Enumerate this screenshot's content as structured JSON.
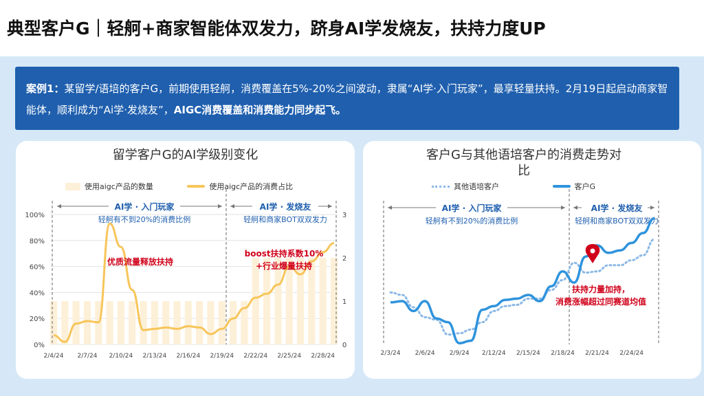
{
  "page_title": "典型客户G｜轻舸+商家智能体双发力，跻身AI学发烧友，扶持力度UP",
  "case": {
    "label": "案例1：",
    "text1": "某留学/语培的客户G，前期使用轻舸，消费覆盖在5%-20%之间波动，隶属“AI学·入门玩家”，最享轻量扶持。2月19日起启动商家智能体，顺利成为“Ai学·发烧友”，",
    "emphasis": "AIGC消费覆盖和消费能力同步起飞。"
  },
  "left_chart": {
    "title": "留学客户G的AI学级别变化",
    "legend": [
      "使用aigc产品的数量",
      "使用aigc产品的消费占比"
    ],
    "phase1_title": "AI学 · 入门玩家",
    "phase1_sub": "轻舸有不到20%的消费比例",
    "phase2_title": "AI学 · 发烧友",
    "phase2_sub": "轻舸和商家BOT双双发力",
    "annotation1": "优质流量释放扶持",
    "annotation2_line1": "boost扶持系数10%",
    "annotation2_line2": "+行业爆量扶持",
    "y_left_ticks": [
      "0%",
      "20%",
      "40%",
      "60%",
      "80%",
      "100%"
    ],
    "y_right_ticks": [
      "0",
      "1",
      "2",
      "3"
    ],
    "x_ticks": [
      "2/4/24",
      "2/7/24",
      "2/10/24",
      "2/13/24",
      "2/16/24",
      "2/19/24",
      "2/22/24",
      "2/25/24",
      "2/28/24"
    ]
  },
  "right_chart": {
    "title_line1": "客户G与其他语培客户的消费走势对",
    "title_line2": "比",
    "legend": [
      "其他语培客户",
      "客户G"
    ],
    "phase1_title": "AI学 · 入门玩家",
    "phase1_sub": "轻舸有不到20%的消费比例",
    "phase2_title": "AI学 · 发烧友",
    "phase2_sub": "轻舸和商家BOT双双发力",
    "annotation_line1": "扶持力量加持，",
    "annotation_line2": "消费涨幅超过同赛道均值",
    "x_ticks": [
      "2/3/24",
      "2/6/24",
      "2/9/24",
      "2/12/24",
      "2/15/24",
      "2/18/24",
      "2/21/24",
      "2/24/24"
    ]
  },
  "chart_data": [
    {
      "type": "bar",
      "title": "留学客户G的AI学级别变化",
      "x": [
        "2/4/24",
        "2/5/24",
        "2/6/24",
        "2/7/24",
        "2/8/24",
        "2/9/24",
        "2/10/24",
        "2/11/24",
        "2/12/24",
        "2/13/24",
        "2/14/24",
        "2/15/24",
        "2/16/24",
        "2/17/24",
        "2/18/24",
        "2/19/24",
        "2/20/24",
        "2/21/24",
        "2/22/24",
        "2/23/24",
        "2/24/24",
        "2/25/24",
        "2/26/24",
        "2/27/24",
        "2/28/24",
        "2/29/24"
      ],
      "series": [
        {
          "name": "使用aigc产品的数量",
          "axis": "right",
          "type": "bar",
          "values": [
            1,
            1,
            1,
            1,
            1,
            1,
            1,
            1,
            1,
            1,
            1,
            1,
            1,
            1,
            1,
            1,
            1,
            1,
            2,
            2,
            2,
            2,
            2,
            2,
            2,
            2
          ]
        },
        {
          "name": "使用aigc产品的消费占比",
          "axis": "left",
          "type": "line",
          "values": [
            7,
            2,
            16,
            18,
            17,
            93,
            75,
            42,
            11,
            12,
            13,
            12,
            14,
            13,
            8,
            12,
            20,
            28,
            36,
            39,
            46,
            60,
            54,
            64,
            71,
            78
          ]
        }
      ],
      "ylim_left": [
        0,
        100
      ],
      "ylim_right": [
        0,
        3
      ]
    },
    {
      "type": "line",
      "title": "客户G与其他语培客户的消费走势对比",
      "x": [
        "2/3/24",
        "2/4/24",
        "2/5/24",
        "2/6/24",
        "2/7/24",
        "2/8/24",
        "2/9/24",
        "2/10/24",
        "2/11/24",
        "2/12/24",
        "2/13/24",
        "2/14/24",
        "2/15/24",
        "2/16/24",
        "2/17/24",
        "2/18/24",
        "2/19/24",
        "2/20/24",
        "2/21/24",
        "2/22/24",
        "2/23/24",
        "2/24/24",
        "2/25/24",
        "2/26/24"
      ],
      "series": [
        {
          "name": "其他语培客户",
          "style": "dotted",
          "values": [
            42,
            40,
            30,
            22,
            20,
            8,
            9,
            12,
            18,
            27,
            31,
            32,
            37,
            37,
            44,
            52,
            66,
            58,
            59,
            64,
            64,
            68,
            72,
            85
          ]
        },
        {
          "name": "客户G",
          "style": "solid",
          "values": [
            34,
            35,
            27,
            35,
            21,
            18,
            1,
            3,
            28,
            31,
            36,
            37,
            40,
            35,
            47,
            59,
            50,
            71,
            80,
            74,
            76,
            82,
            90,
            102
          ]
        }
      ]
    }
  ]
}
